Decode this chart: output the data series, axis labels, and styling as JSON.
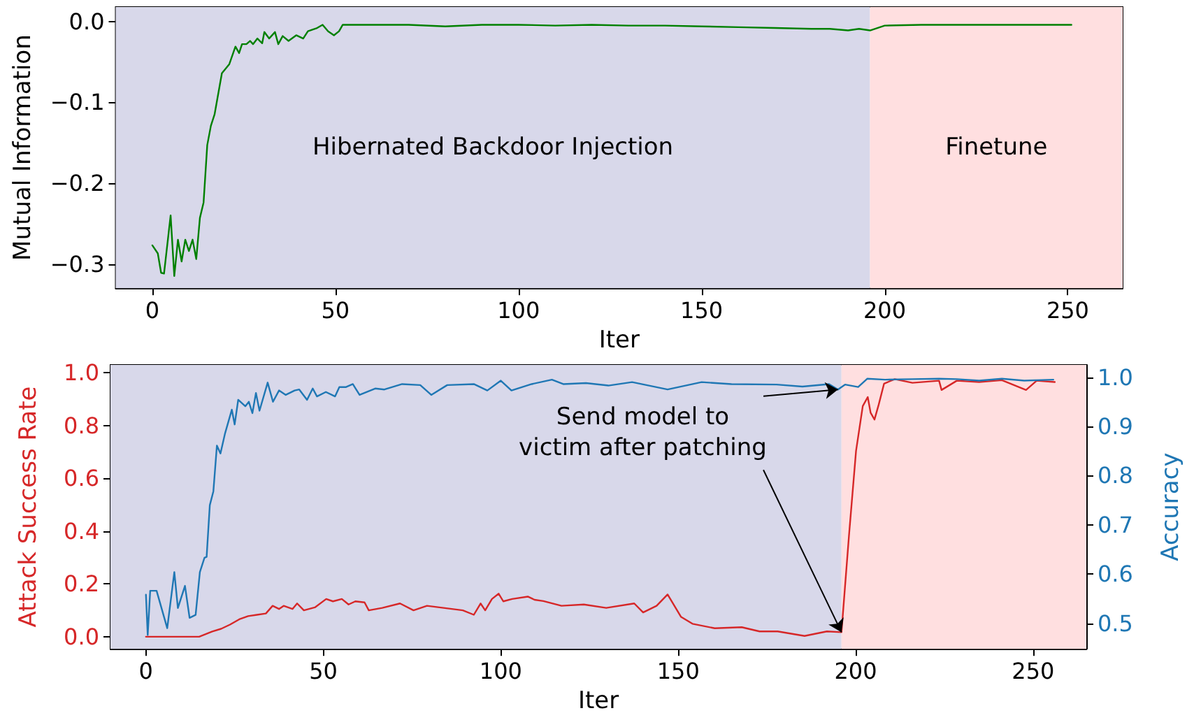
{
  "chart_data": [
    {
      "type": "line",
      "xlabel": "Iter",
      "ylabel": "Mutual Information",
      "xlim": [
        -10,
        265
      ],
      "xticks": [
        0,
        50,
        100,
        150,
        200,
        250
      ],
      "ylim": [
        -0.33,
        0.018
      ],
      "yticks": [
        {
          "value": -0.3,
          "label": "−0.3"
        },
        {
          "value": -0.2,
          "label": "−0.2"
        },
        {
          "value": -0.1,
          "label": "−0.1"
        },
        {
          "value": 0,
          "label": "0.0"
        }
      ],
      "grid": false,
      "marker": "none",
      "line_style": "solid",
      "bands": [
        {
          "axis": "x",
          "from": -10,
          "to": 196,
          "label": "Hibernated Backdoor Injection",
          "color": "#d8d8ea"
        },
        {
          "axis": "x",
          "from": 196,
          "to": 265,
          "label": "Finetune",
          "color": "#ffdfe0"
        }
      ],
      "series": [
        {
          "color": "#008000",
          "x": [
            0,
            1.5,
            2.4,
            3.2,
            5,
            6,
            7,
            8,
            9,
            10,
            11,
            12,
            13,
            14,
            15,
            16,
            17,
            19,
            21,
            22.7,
            23.7,
            24.5,
            25.7,
            26.7,
            27.5,
            28.7,
            30,
            30.6,
            31.9,
            33.5,
            34.4,
            35.6,
            37.2,
            39.3,
            41.2,
            42.5,
            45,
            46.5,
            48,
            49.6,
            51,
            52,
            60,
            70,
            80,
            90,
            100,
            110,
            120,
            130,
            140,
            150,
            160,
            170,
            180,
            185,
            190,
            193,
            196,
            200,
            210,
            220,
            230,
            240,
            251
          ],
          "values": [
            -0.277,
            -0.287,
            -0.311,
            -0.312,
            -0.24,
            -0.315,
            -0.27,
            -0.297,
            -0.27,
            -0.284,
            -0.27,
            -0.294,
            -0.243,
            -0.224,
            -0.153,
            -0.129,
            -0.115,
            -0.064,
            -0.053,
            -0.031,
            -0.039,
            -0.028,
            -0.028,
            -0.024,
            -0.028,
            -0.021,
            -0.027,
            -0.013,
            -0.021,
            -0.013,
            -0.028,
            -0.018,
            -0.024,
            -0.017,
            -0.021,
            -0.012,
            -0.008,
            -0.004,
            -0.012,
            -0.017,
            -0.012,
            -0.004,
            -0.004,
            -0.004,
            -0.006,
            -0.004,
            -0.004,
            -0.005,
            -0.004,
            -0.005,
            -0.005,
            -0.006,
            -0.007,
            -0.008,
            -0.009,
            -0.009,
            -0.011,
            -0.009,
            -0.011,
            -0.005,
            -0.004,
            -0.004,
            -0.004,
            -0.004,
            -0.004
          ]
        }
      ]
    },
    {
      "type": "line",
      "xlabel": "Iter",
      "ylabel": "Attack Success Rate",
      "y2label": "Accuracy",
      "xlim": [
        -10,
        265
      ],
      "xticks": [
        0,
        50,
        100,
        150,
        200,
        250
      ],
      "ylim": [
        -0.046,
        1.03
      ],
      "yticks": [
        {
          "value": 0,
          "label": "0.0"
        },
        {
          "value": 0.2,
          "label": "0.2"
        },
        {
          "value": 0.4,
          "label": "0.4"
        },
        {
          "value": 0.6,
          "label": "0.6"
        },
        {
          "value": 0.8,
          "label": "0.8"
        },
        {
          "value": 1,
          "label": "1.0"
        }
      ],
      "y2lim": [
        0.448,
        1.025
      ],
      "y2ticks": [
        {
          "value": 0.5,
          "label": "0.5"
        },
        {
          "value": 0.6,
          "label": "0.6"
        },
        {
          "value": 0.7,
          "label": "0.7"
        },
        {
          "value": 0.8,
          "label": "0.8"
        },
        {
          "value": 0.9,
          "label": "0.9"
        },
        {
          "value": 1,
          "label": "1.0"
        }
      ],
      "grid": false,
      "marker": "none",
      "line_style": "solid",
      "bands": [
        {
          "axis": "x",
          "from": -10,
          "to": 196,
          "color": "#d8d8ea"
        },
        {
          "axis": "x",
          "from": 196,
          "to": 265,
          "color": "#ffdfe0"
        }
      ],
      "annotations": [
        {
          "text": "Send model to\nvictim after patching",
          "x": 196,
          "y": 0.017
        }
      ],
      "series": [
        {
          "color": "#d62728",
          "x": [
            0,
            15,
            18.7,
            21.2,
            23.7,
            26.3,
            28.8,
            31.3,
            33.8,
            35.7,
            37.5,
            38.8,
            41.3,
            42.6,
            44.5,
            47.6,
            50.8,
            52.7,
            55.2,
            57.1,
            59,
            61.6,
            62.8,
            66.6,
            71.6,
            75.4,
            79.2,
            89.3,
            92.4,
            94.3,
            95.6,
            97.5,
            99.4,
            100.7,
            103.2,
            107.6,
            109.5,
            112,
            117.1,
            123.4,
            129.7,
            137.6,
            140.1,
            143.9,
            147,
            150.8,
            154,
            160.3,
            167.9,
            172.9,
            178,
            185.6,
            191.9,
            196,
            198.1,
            200.1,
            202,
            203.4,
            204.2,
            205.3,
            206.5,
            208,
            211,
            216,
            223.5,
            224.2,
            228.5,
            234.8,
            241.2,
            248,
            251,
            256.1
          ],
          "values": [
            0,
            0,
            0.02,
            0.03,
            0.046,
            0.066,
            0.078,
            0.083,
            0.088,
            0.117,
            0.105,
            0.117,
            0.105,
            0.126,
            0.1,
            0.111,
            0.143,
            0.134,
            0.143,
            0.122,
            0.134,
            0.13,
            0.1,
            0.109,
            0.126,
            0.1,
            0.117,
            0.1,
            0.083,
            0.126,
            0.1,
            0.143,
            0.163,
            0.134,
            0.143,
            0.152,
            0.14,
            0.135,
            0.117,
            0.122,
            0.109,
            0.126,
            0.092,
            0.117,
            0.16,
            0.075,
            0.049,
            0.032,
            0.036,
            0.02,
            0.02,
            0.003,
            0.02,
            0.017,
            0.381,
            0.704,
            0.874,
            0.908,
            0.849,
            0.823,
            0.88,
            0.959,
            0.976,
            0.962,
            0.97,
            0.935,
            0.97,
            0.965,
            0.972,
            0.935,
            0.97,
            0.965
          ]
        },
        {
          "color": "#1f77b4",
          "axis": "y2",
          "x": [
            0,
            0.5,
            1.2,
            3,
            6,
            8,
            9,
            11,
            12.3,
            14,
            15.2,
            16.5,
            17.1,
            18,
            19,
            20,
            21,
            22.3,
            24.2,
            25,
            26,
            28,
            29,
            30,
            31,
            32,
            34.3,
            35.8,
            37.5,
            39.4,
            41.9,
            43.2,
            45.4,
            47,
            48.2,
            50.7,
            53.3,
            54.5,
            56.4,
            58.3,
            60.2,
            64.6,
            67.2,
            72.2,
            77.3,
            80.4,
            84.9,
            92.4,
            96.2,
            100,
            103,
            108.7,
            114.4,
            117.6,
            124,
            130.3,
            137,
            147,
            156.6,
            165,
            177.7,
            185,
            192.5,
            195,
            197,
            200.7,
            203.3,
            208.3,
            216,
            223.5,
            228.5,
            234.8,
            241.2,
            247.5,
            255.7
          ],
          "values": [
            0.558,
            0.476,
            0.566,
            0.566,
            0.49,
            0.604,
            0.531,
            0.576,
            0.511,
            0.517,
            0.604,
            0.633,
            0.635,
            0.74,
            0.768,
            0.861,
            0.845,
            0.886,
            0.934,
            0.904,
            0.954,
            0.941,
            0.95,
            0.927,
            0.968,
            0.932,
            0.989,
            0.95,
            0.973,
            0.964,
            0.973,
            0.975,
            0.954,
            0.977,
            0.961,
            0.97,
            0.961,
            0.98,
            0.98,
            0.986,
            0.964,
            0.977,
            0.975,
            0.986,
            0.984,
            0.964,
            0.984,
            0.986,
            0.973,
            0.993,
            0.973,
            0.986,
            0.995,
            0.986,
            0.988,
            0.983,
            0.99,
            0.975,
            0.99,
            0.986,
            0.985,
            0.981,
            0.986,
            0.975,
            0.985,
            0.98,
            0.997,
            0.995,
            0.996,
            0.997,
            0.996,
            0.993,
            0.997,
            0.993,
            0.995
          ]
        }
      ]
    }
  ]
}
